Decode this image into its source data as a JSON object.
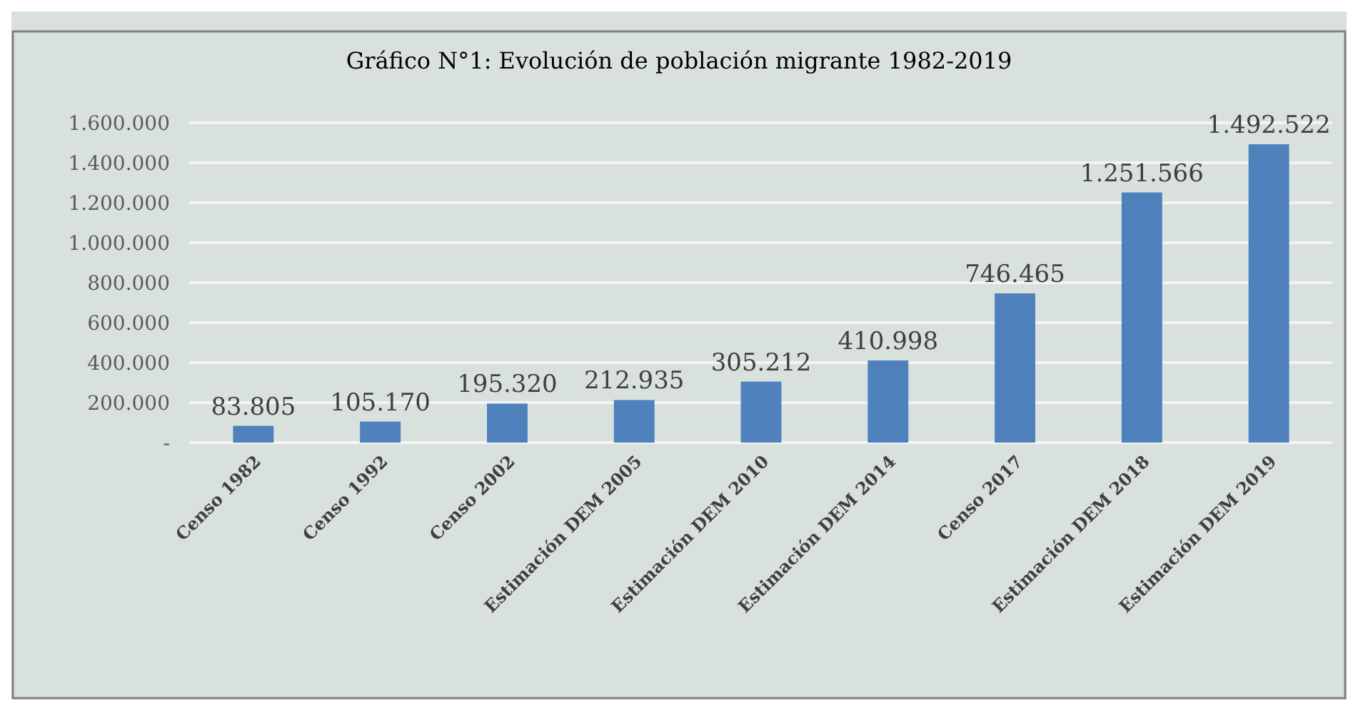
{
  "chart_data": {
    "type": "bar",
    "title": "Gráfico N°1: Evolución de población migrante 1982-2019",
    "categories": [
      "Censo 1982",
      "Censo 1992",
      "Censo 2002",
      "Estimación DEM 2005",
      "Estimación DEM 2010",
      "Estimación DEM 2014",
      "Censo 2017",
      "Estimación DEM 2018",
      "Estimación DEM 2019"
    ],
    "values": [
      83805,
      105170,
      195320,
      212935,
      305212,
      410998,
      746465,
      1251566,
      1492522
    ],
    "value_labels": [
      "83.805",
      "105.170",
      "195.320",
      "212.935",
      "305.212",
      "410.998",
      "746.465",
      "1.251.566",
      "1.492.522"
    ],
    "color": "#4f81bd",
    "ylim": [
      0,
      1600000
    ],
    "yticks": [
      {
        "value": 0,
        "label": "-"
      },
      {
        "value": 200000,
        "label": "200.000"
      },
      {
        "value": 400000,
        "label": "400.000"
      },
      {
        "value": 600000,
        "label": "600.000"
      },
      {
        "value": 800000,
        "label": "800.000"
      },
      {
        "value": 1000000,
        "label": "1.000.000"
      },
      {
        "value": 1200000,
        "label": "1.200.000"
      },
      {
        "value": 1400000,
        "label": "1.400.000"
      },
      {
        "value": 1600000,
        "label": "1.600.000"
      }
    ],
    "grid": "y"
  }
}
